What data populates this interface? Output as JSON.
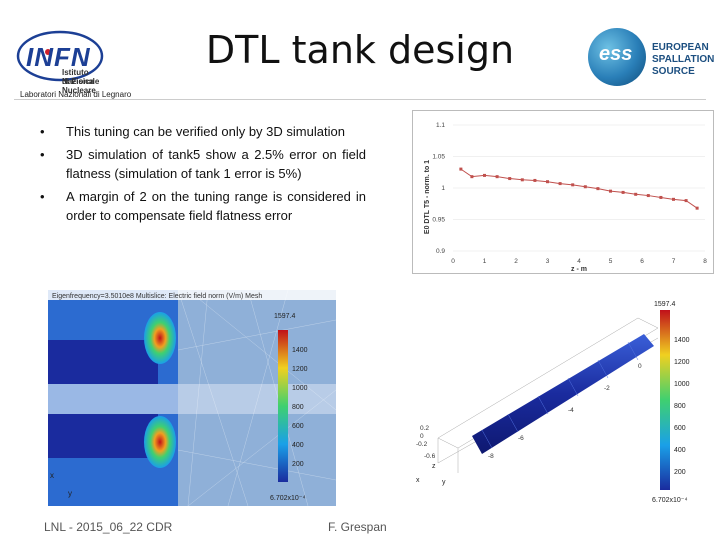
{
  "slide": {
    "title": "DTL tank design"
  },
  "logos": {
    "infn": {
      "wordmark": "INFN",
      "line1": "Istituto Nazionale",
      "line2": "di Fisica Nucleare",
      "lab": "Laboratori Nazionali di Legnaro"
    },
    "ess": {
      "mark": "ess",
      "line1": "EUROPEAN",
      "line2": "SPALLATION",
      "line3": "SOURCE"
    }
  },
  "bullets": [
    "This tuning can be verified only by 3D simulation",
    "3D simulation of tank5 show a 2.5% error on field flatness (simulation of tank 1 error is 5%)",
    "A margin of 2 on the tuning range is considered in order to compensate field flatness error"
  ],
  "plot": {
    "ylabel": "E0 DTL T5 - norm. to 1",
    "xlabel": "z - m",
    "yticks": [
      "1.1",
      "1.05",
      "1",
      "0.95",
      "0.9"
    ],
    "xticks": [
      "0",
      "1",
      "2",
      "3",
      "4",
      "5",
      "6",
      "7",
      "8"
    ]
  },
  "chart_data": {
    "type": "line",
    "xlabel": "z - m",
    "ylabel": "E0 DTL T5 - norm. to 1",
    "xlim": [
      0,
      8
    ],
    "ylim": [
      0.9,
      1.1
    ],
    "series": [
      {
        "values_x": [
          0.25,
          0.6,
          1.0,
          1.4,
          1.8,
          2.2,
          2.6,
          3.0,
          3.4,
          3.8,
          4.2,
          4.6,
          5.0,
          5.4,
          5.8,
          6.2,
          6.6,
          7.0,
          7.4,
          7.75
        ],
        "values_y": [
          1.03,
          1.018,
          1.02,
          1.018,
          1.015,
          1.013,
          1.012,
          1.01,
          1.007,
          1.005,
          1.002,
          0.999,
          0.995,
          0.993,
          0.99,
          0.988,
          0.985,
          0.982,
          0.98,
          0.968
        ]
      }
    ]
  },
  "sim_left": {
    "header": "Eigenfrequency=3.5010e8  Multislice: Electric field norm (V/m)  Mesh",
    "colorbar_max": "1597.4",
    "colorbar_ticks": [
      "1400",
      "1200",
      "1000",
      "800",
      "600",
      "400",
      "200"
    ],
    "colorbar_min": "6.702x10⁻⁴",
    "axis_x": "x",
    "axis_y": "y",
    "color_high": "#c0101a",
    "color_low": "#1a2b9e",
    "color_bg": "#8fb0d8"
  },
  "sim_right": {
    "colorbar_max": "1597.4",
    "colorbar_ticks": [
      "1400",
      "1200",
      "1000",
      "800",
      "600",
      "400",
      "200"
    ],
    "colorbar_min": "6.702x10⁻⁴",
    "axis_ticks": [
      "0.2",
      "0",
      "-0.2",
      "-0.6",
      "-8",
      "-6",
      "-4",
      "-2",
      "0"
    ],
    "axis_z": "z",
    "axis_x": "x",
    "axis_y": "y"
  },
  "footer": {
    "left": "LNL - 2015_06_22 CDR",
    "right": "F. Grespan"
  }
}
